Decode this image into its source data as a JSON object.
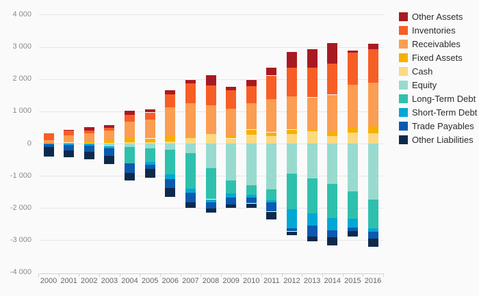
{
  "chart_data": {
    "type": "bar",
    "stacked": true,
    "title": "",
    "xlabel": "",
    "ylabel": "",
    "ylim": [
      -4000,
      4000
    ],
    "grid": true,
    "legend_position": "right",
    "y_tick_labels": [
      "4 000",
      "3 000",
      "2 000",
      "1 000",
      "0",
      "-1 000",
      "-2 000",
      "-3 000",
      "-4 000"
    ],
    "y_tick_values": [
      4000,
      3000,
      2000,
      1000,
      0,
      -1000,
      -2000,
      -3000,
      -4000
    ],
    "categories": [
      "2000",
      "2001",
      "2002",
      "2003",
      "2004",
      "2005",
      "2006",
      "2007",
      "2008",
      "2009",
      "2010",
      "2011",
      "2012",
      "2013",
      "2014",
      "2015",
      "2016"
    ],
    "series": [
      {
        "name": "Other Assets",
        "color": "#a81a22",
        "values": [
          0,
          20,
          90,
          95,
          130,
          100,
          130,
          105,
          320,
          120,
          200,
          250,
          490,
          580,
          630,
          70,
          155
        ]
      },
      {
        "name": "Inventories",
        "color": "#f75e25",
        "values": [
          220,
          150,
          90,
          90,
          210,
          215,
          400,
          620,
          630,
          560,
          530,
          725,
          900,
          915,
          970,
          1010,
          1055
        ]
      },
      {
        "name": "Receivables",
        "color": "#fb9d52",
        "values": [
          100,
          230,
          260,
          280,
          510,
          590,
          880,
          1035,
          860,
          860,
          810,
          1035,
          1020,
          985,
          1140,
          1320,
          1355
        ]
      },
      {
        "name": "Fixed Assets",
        "color": "#f8af00",
        "values": [
          0,
          30,
          40,
          90,
          115,
          120,
          175,
          40,
          20,
          70,
          155,
          105,
          135,
          60,
          150,
          155,
          210
        ]
      },
      {
        "name": "Cash",
        "color": "#fbd981",
        "values": [
          0,
          0,
          20,
          25,
          50,
          40,
          70,
          170,
          300,
          160,
          280,
          245,
          300,
          385,
          225,
          340,
          315
        ]
      },
      {
        "name": "Equity",
        "color": "#98dbce",
        "values": [
          0,
          0,
          0,
          -90,
          -110,
          -155,
          -190,
          -300,
          -760,
          -1145,
          -1300,
          -1430,
          -935,
          -1090,
          -1245,
          -1475,
          -1745
        ]
      },
      {
        "name": "Long-Term Debt",
        "color": "#2fc0ad",
        "values": [
          0,
          0,
          0,
          0,
          -500,
          -420,
          -760,
          -1105,
          -970,
          -395,
          -285,
          -330,
          -1105,
          -1075,
          -1075,
          -865,
          -880
        ]
      },
      {
        "name": "Short-Term Debt",
        "color": "#01a8d5",
        "values": [
          -20,
          -40,
          -55,
          -65,
          0,
          -85,
          -155,
          -125,
          -85,
          -130,
          -85,
          -60,
          -585,
          -385,
          -370,
          -260,
          -105
        ]
      },
      {
        "name": "Trade Payables",
        "color": "#0c59af",
        "values": [
          -90,
          -180,
          -200,
          -230,
          -300,
          -130,
          -280,
          -295,
          -195,
          -210,
          -185,
          -290,
          -100,
          -330,
          -225,
          -120,
          -210
        ]
      },
      {
        "name": "Other Liabilities",
        "color": "#0e2a4a",
        "values": [
          -290,
          -210,
          -225,
          -260,
          -230,
          -265,
          -265,
          -160,
          -130,
          -115,
          -140,
          -245,
          -110,
          -160,
          -250,
          -175,
          -270
        ]
      }
    ]
  },
  "colors": {
    "background": "#fafafa",
    "gridline": "#e6e6e6",
    "axis": "#c6d3e6",
    "y_label": "#8a8a8a",
    "x_label": "#666666",
    "legend_text": "#2b2b2b"
  }
}
